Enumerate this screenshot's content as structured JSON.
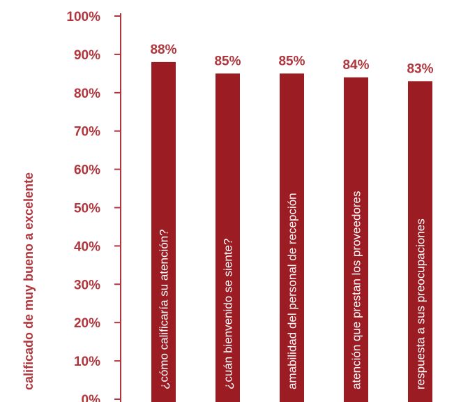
{
  "chart_data": {
    "type": "bar",
    "title": "",
    "xlabel": "",
    "ylabel": "calificado de muy bueno a excelente",
    "categories": [
      "¿cómo calificaría su atención?",
      "¿cuán bienvenido se siente?",
      "amabilidad del personal de recepción",
      "atención que prestan los proveedores",
      "respuesta a sus preocupaciones"
    ],
    "values": [
      88,
      85,
      85,
      84,
      83
    ],
    "value_labels": [
      "88%",
      "85%",
      "85%",
      "84%",
      "83%"
    ],
    "ylim": [
      0,
      100
    ],
    "yticks": [
      0,
      10,
      20,
      30,
      40,
      50,
      60,
      70,
      80,
      90,
      100
    ],
    "ytick_labels": [
      "0%",
      "10%",
      "20%",
      "30%",
      "40%",
      "50%",
      "60%",
      "70%",
      "80%",
      "90%",
      "100%"
    ],
    "grid": false,
    "legend": "none",
    "colors": {
      "bar": "#9b1c23",
      "axis": "#b0363d",
      "text": "#b0363d",
      "bar_text": "#ffffff"
    }
  }
}
